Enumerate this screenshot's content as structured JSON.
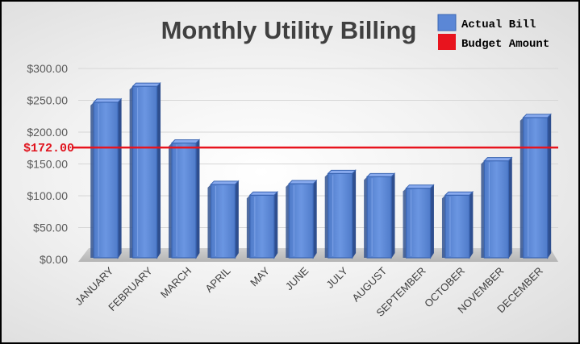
{
  "chart_data": {
    "type": "bar",
    "title": "Monthly Utility Billing",
    "categories": [
      "JANUARY",
      "FEBRUARY",
      "MARCH",
      "APRIL",
      "MAY",
      "JUNE",
      "JULY",
      "AUGUST",
      "SEPTEMBER",
      "OCTOBER",
      "NOVEMBER",
      "DECEMBER"
    ],
    "series": [
      {
        "name": "Actual Bill",
        "values": [
          252,
          277,
          188,
          123,
          106,
          124,
          140,
          135,
          117,
          106,
          160,
          228
        ],
        "color": "#5b87d6"
      },
      {
        "name": "Budget Amount",
        "values": [
          172,
          172,
          172,
          172,
          172,
          172,
          172,
          172,
          172,
          172,
          172,
          172
        ],
        "color": "#e8141e"
      }
    ],
    "reference_label": "$172.00",
    "y_ticks": [
      "$0.00",
      "$50.00",
      "$100.00",
      "$150.00",
      "$200.00",
      "$250.00",
      "$300.00"
    ],
    "ylim": [
      0,
      300
    ],
    "grid": true,
    "legend_position": "top-right",
    "xlabel": "",
    "ylabel": ""
  }
}
